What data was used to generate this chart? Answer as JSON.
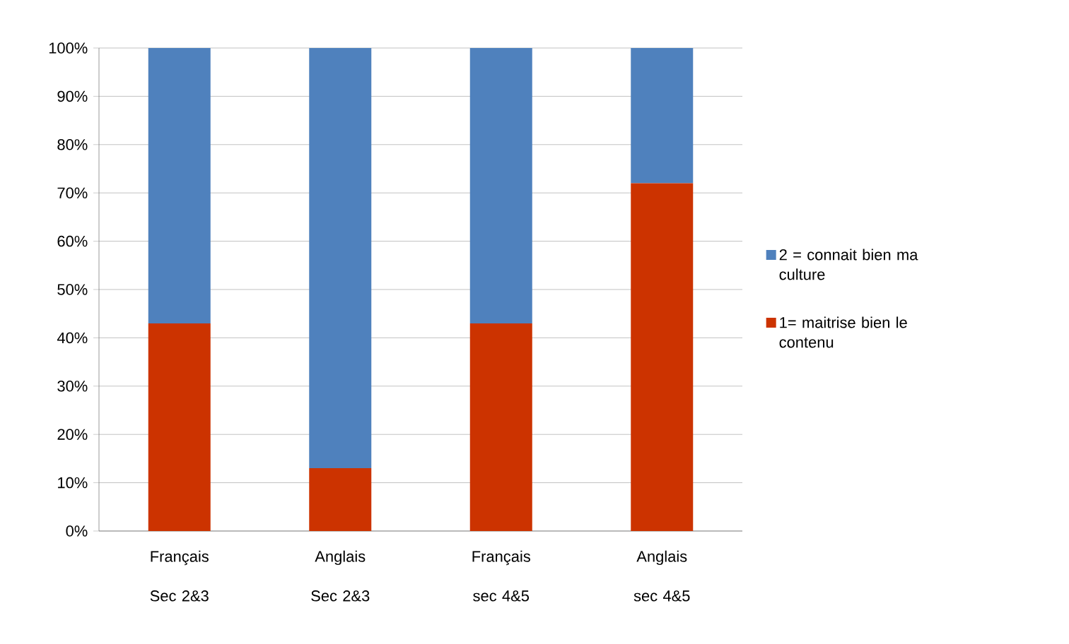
{
  "chart_data": {
    "type": "bar",
    "stacked": true,
    "categories": [
      "Français Sec 2&3",
      "Anglais Sec 2&3",
      "Français sec 4&5",
      "Anglais sec 4&5"
    ],
    "series": [
      {
        "name": "1= maitrise bien le contenu",
        "color": "#cc3300",
        "values": [
          43,
          13,
          43,
          72
        ]
      },
      {
        "name": "2 = connait bien ma culture",
        "color": "#4f81bd",
        "values": [
          57,
          87,
          57,
          28
        ]
      }
    ],
    "ylim": [
      0,
      100
    ],
    "yticks": [
      {
        "value": 0,
        "label": "0%"
      },
      {
        "value": 10,
        "label": "10%"
      },
      {
        "value": 20,
        "label": "20%"
      },
      {
        "value": 30,
        "label": "30%"
      },
      {
        "value": 40,
        "label": "40%"
      },
      {
        "value": 50,
        "label": "50%"
      },
      {
        "value": 60,
        "label": "60%"
      },
      {
        "value": 70,
        "label": "70%"
      },
      {
        "value": 80,
        "label": "80%"
      },
      {
        "value": 90,
        "label": "90%"
      },
      {
        "value": 100,
        "label": "100%"
      }
    ],
    "grid": "y",
    "legend": "right"
  }
}
